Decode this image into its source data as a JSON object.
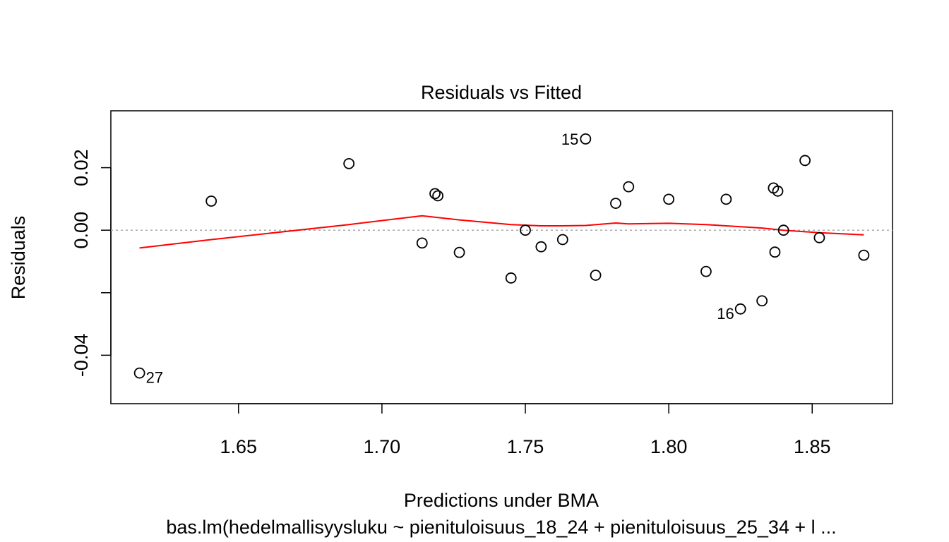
{
  "chart_data": {
    "type": "scatter",
    "title": "Residuals vs Fitted",
    "xlabel": "Predictions under BMA",
    "subtitle": "bas.lm(hedelmallisyysluku ~ pienituloisuus_18_24 + pienituloisuus_25_34 + l ...",
    "ylabel": "Residuals",
    "xlim": [
      1.6055,
      1.878
    ],
    "ylim": [
      -0.0555,
      0.0382
    ],
    "xticks": [
      1.65,
      1.7,
      1.75,
      1.8,
      1.85
    ],
    "xtick_labels": [
      "1.65",
      "1.70",
      "1.75",
      "1.80",
      "1.85"
    ],
    "yticks": [
      -0.04,
      -0.02,
      0.0,
      0.02
    ],
    "ytick_labels": [
      "-0.04",
      "",
      "0.00",
      "0.02"
    ],
    "reference_line": {
      "y": 0.0,
      "style": "dotted",
      "color": "#aaaaaa"
    },
    "points": [
      {
        "x": 1.6155,
        "y": -0.0457,
        "label": "27"
      },
      {
        "x": 1.6405,
        "y": 0.0093
      },
      {
        "x": 1.6885,
        "y": 0.0213
      },
      {
        "x": 1.714,
        "y": -0.0041
      },
      {
        "x": 1.7185,
        "y": 0.0117
      },
      {
        "x": 1.7195,
        "y": 0.011
      },
      {
        "x": 1.727,
        "y": -0.0071
      },
      {
        "x": 1.745,
        "y": -0.0153
      },
      {
        "x": 1.75,
        "y": 0.0
      },
      {
        "x": 1.7555,
        "y": -0.0053
      },
      {
        "x": 1.763,
        "y": -0.003
      },
      {
        "x": 1.771,
        "y": 0.0292,
        "label": "15"
      },
      {
        "x": 1.7745,
        "y": -0.0144
      },
      {
        "x": 1.7815,
        "y": 0.0086
      },
      {
        "x": 1.786,
        "y": 0.0139
      },
      {
        "x": 1.8,
        "y": 0.0099
      },
      {
        "x": 1.813,
        "y": -0.0132
      },
      {
        "x": 1.82,
        "y": 0.0099
      },
      {
        "x": 1.825,
        "y": -0.0252,
        "label": "16"
      },
      {
        "x": 1.8325,
        "y": -0.0226
      },
      {
        "x": 1.8365,
        "y": 0.0135
      },
      {
        "x": 1.837,
        "y": -0.007
      },
      {
        "x": 1.838,
        "y": 0.0125
      },
      {
        "x": 1.84,
        "y": 0.0
      },
      {
        "x": 1.8475,
        "y": 0.0223
      },
      {
        "x": 1.8525,
        "y": -0.0024
      },
      {
        "x": 1.868,
        "y": -0.008
      }
    ],
    "smoother": {
      "color": "#ff0000",
      "x": [
        1.6155,
        1.6405,
        1.6885,
        1.714,
        1.727,
        1.745,
        1.7555,
        1.763,
        1.771,
        1.7815,
        1.786,
        1.8,
        1.813,
        1.82,
        1.8325,
        1.84,
        1.8525,
        1.868
      ],
      "y": [
        -0.0057,
        -0.003,
        0.0018,
        0.0046,
        0.0033,
        0.0018,
        0.0014,
        0.0014,
        0.0015,
        0.0023,
        0.002,
        0.0022,
        0.0018,
        0.0014,
        0.0007,
        0.0,
        -0.0008,
        -0.0015
      ]
    },
    "grid": false,
    "legend": "none"
  }
}
